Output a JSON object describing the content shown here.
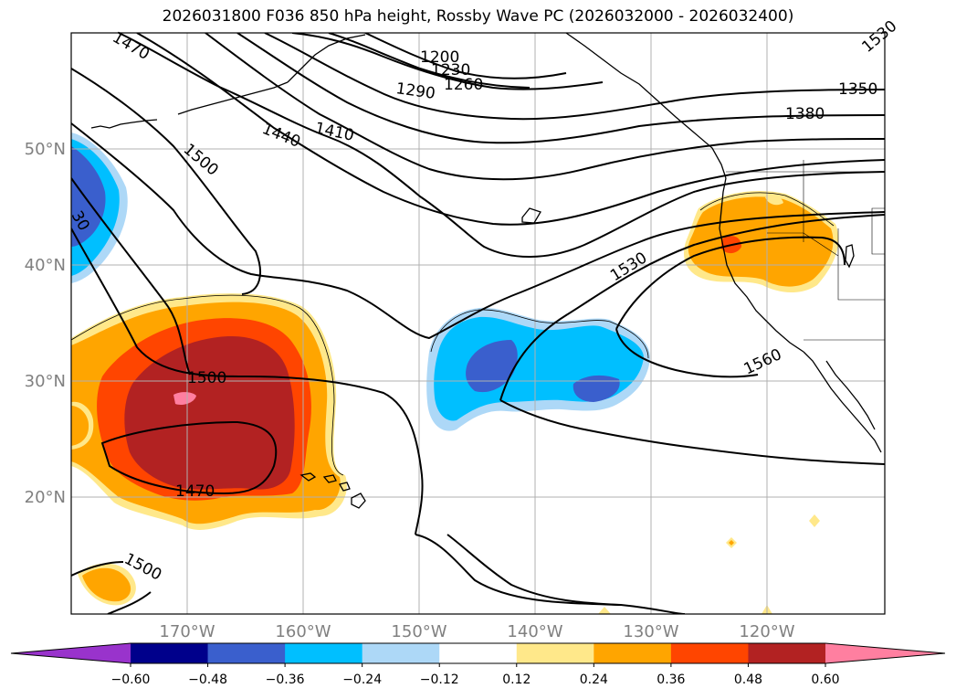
{
  "title": "2026031800 F036 850 hPa height, Rossby Wave PC (2026032000 - 2026032400)",
  "lat_labels": [
    "50°N",
    "40°N",
    "30°N",
    "20°N"
  ],
  "lon_labels": [
    "170°W",
    "160°W",
    "150°W",
    "140°W",
    "130°W",
    "120°W"
  ],
  "contour_labels": [
    "1470",
    "1500",
    "1440",
    "1410",
    "1200",
    "1230",
    "1260",
    "1290",
    "1350",
    "1380",
    "1530",
    "1560",
    "1500",
    "1470",
    "1500",
    "30",
    "1530"
  ],
  "colorbar": {
    "ticks": [
      "−0.60",
      "−0.48",
      "−0.36",
      "−0.24",
      "−0.12",
      "0.12",
      "0.24",
      "0.36",
      "0.48",
      "0.60"
    ],
    "colors": [
      "#9933cc",
      "#00008b",
      "#3a5fcd",
      "#00bfff",
      "#add8f7",
      "#ffffff",
      "#ffe88a",
      "#ffa500",
      "#ff4500",
      "#b22222",
      "#ff7fa0"
    ]
  }
}
